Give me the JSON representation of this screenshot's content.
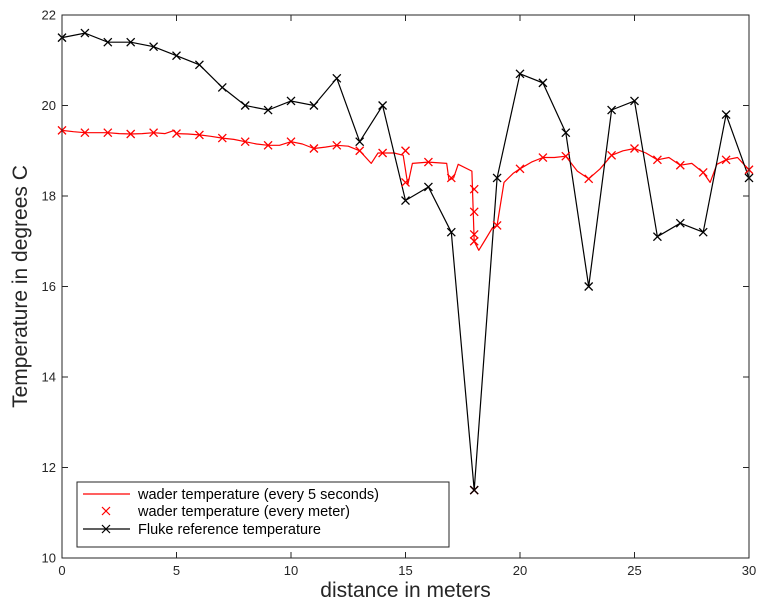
{
  "chart_data": {
    "type": "line",
    "title": "",
    "xlabel": "distance in meters",
    "ylabel": "Temperature in degrees C",
    "xlim": [
      0,
      30
    ],
    "ylim": [
      10,
      22
    ],
    "xticks": [
      "0",
      "5",
      "10",
      "15",
      "20",
      "25",
      "30"
    ],
    "yticks": [
      "10",
      "12",
      "14",
      "16",
      "18",
      "20",
      "22"
    ],
    "grid": false,
    "legend_position": "bottom-left",
    "series": [
      {
        "name": "wader temperature (every 5 seconds)",
        "style": "line",
        "color": "#ff0000",
        "points": [
          [
            0,
            19.45
          ],
          [
            0.5,
            19.42
          ],
          [
            1,
            19.4
          ],
          [
            1.5,
            19.4
          ],
          [
            2,
            19.4
          ],
          [
            2.5,
            19.38
          ],
          [
            3,
            19.37
          ],
          [
            3.5,
            19.38
          ],
          [
            4,
            19.4
          ],
          [
            4.5,
            19.38
          ],
          [
            4.9,
            19.45
          ],
          [
            5,
            19.38
          ],
          [
            5.5,
            19.37
          ],
          [
            6,
            19.35
          ],
          [
            6.5,
            19.32
          ],
          [
            7,
            19.28
          ],
          [
            7.5,
            19.25
          ],
          [
            8,
            19.2
          ],
          [
            8.5,
            19.15
          ],
          [
            9,
            19.12
          ],
          [
            9.5,
            19.12
          ],
          [
            10,
            19.2
          ],
          [
            10.5,
            19.15
          ],
          [
            11,
            19.05
          ],
          [
            11.5,
            19.08
          ],
          [
            12,
            19.12
          ],
          [
            12.5,
            19.1
          ],
          [
            13,
            19.0
          ],
          [
            13.5,
            18.72
          ],
          [
            13.8,
            18.95
          ],
          [
            14,
            18.95
          ],
          [
            14.5,
            18.95
          ],
          [
            14.9,
            18.9
          ],
          [
            15.1,
            18.25
          ],
          [
            15.3,
            18.72
          ],
          [
            16,
            18.75
          ],
          [
            16.8,
            18.72
          ],
          [
            16.9,
            18.35
          ],
          [
            17.1,
            18.4
          ],
          [
            17.3,
            18.7
          ],
          [
            17.9,
            18.55
          ],
          [
            18.0,
            17.0
          ],
          [
            18.2,
            16.8
          ],
          [
            18.5,
            17.05
          ],
          [
            18.8,
            17.3
          ],
          [
            19.0,
            17.35
          ],
          [
            19.3,
            18.3
          ],
          [
            19.7,
            18.5
          ],
          [
            20,
            18.6
          ],
          [
            20.5,
            18.75
          ],
          [
            21,
            18.85
          ],
          [
            21.5,
            18.85
          ],
          [
            22,
            18.88
          ],
          [
            22.5,
            18.55
          ],
          [
            23,
            18.38
          ],
          [
            23.5,
            18.6
          ],
          [
            24,
            18.9
          ],
          [
            24.5,
            19.0
          ],
          [
            25,
            19.05
          ],
          [
            25.5,
            18.95
          ],
          [
            26,
            18.8
          ],
          [
            26.5,
            18.85
          ],
          [
            27,
            18.68
          ],
          [
            27.5,
            18.72
          ],
          [
            28,
            18.52
          ],
          [
            28.3,
            18.3
          ],
          [
            28.6,
            18.7
          ],
          [
            29,
            18.8
          ],
          [
            29.5,
            18.85
          ],
          [
            30,
            18.58
          ]
        ]
      },
      {
        "name": "wader temperature (every meter)",
        "style": "x-markers",
        "color": "#ff0000",
        "x": [
          0,
          1,
          2,
          3,
          4,
          5,
          6,
          7,
          8,
          9,
          10,
          11,
          12,
          13,
          14,
          15,
          16,
          17,
          18,
          19,
          20,
          21,
          22,
          23,
          24,
          25,
          26,
          27,
          28,
          29,
          30
        ],
        "y": [
          19.45,
          19.4,
          19.4,
          19.37,
          19.4,
          19.38,
          19.35,
          19.28,
          19.2,
          19.12,
          19.2,
          19.05,
          19.12,
          19.0,
          18.95,
          18.3,
          18.75,
          18.4,
          17.65,
          17.35,
          18.6,
          18.85,
          18.88,
          18.38,
          18.9,
          19.05,
          18.8,
          18.68,
          18.52,
          18.8,
          18.58
        ]
      },
      {
        "name": "Fluke reference temperature",
        "style": "line-x-markers",
        "color": "#000000",
        "x": [
          0,
          1,
          2,
          3,
          4,
          5,
          6,
          7,
          8,
          9,
          10,
          11,
          12,
          13,
          14,
          15,
          16,
          17,
          18,
          19,
          20,
          21,
          22,
          23,
          24,
          25,
          26,
          27,
          28,
          29,
          30
        ],
        "y": [
          21.5,
          21.6,
          21.4,
          21.4,
          21.3,
          21.1,
          20.9,
          20.4,
          20.0,
          19.9,
          20.1,
          20.0,
          20.6,
          19.2,
          20.0,
          17.9,
          18.2,
          17.2,
          11.5,
          18.4,
          20.7,
          20.5,
          19.4,
          16.0,
          19.9,
          20.1,
          17.1,
          17.4,
          17.2,
          19.8,
          18.4
        ]
      }
    ],
    "extra_markers": [
      {
        "series": "wader temperature (every meter)",
        "x": 15.0,
        "y": 19.0
      },
      {
        "series": "wader temperature (every meter)",
        "x": 18.0,
        "y": 18.15
      },
      {
        "series": "wader temperature (every meter)",
        "x": 18.0,
        "y": 17.15
      },
      {
        "series": "wader temperature (every meter)",
        "x": 18.0,
        "y": 17.0
      },
      {
        "series": "wader temperature (every meter)",
        "x": 18.0,
        "y": 11.5
      }
    ]
  }
}
